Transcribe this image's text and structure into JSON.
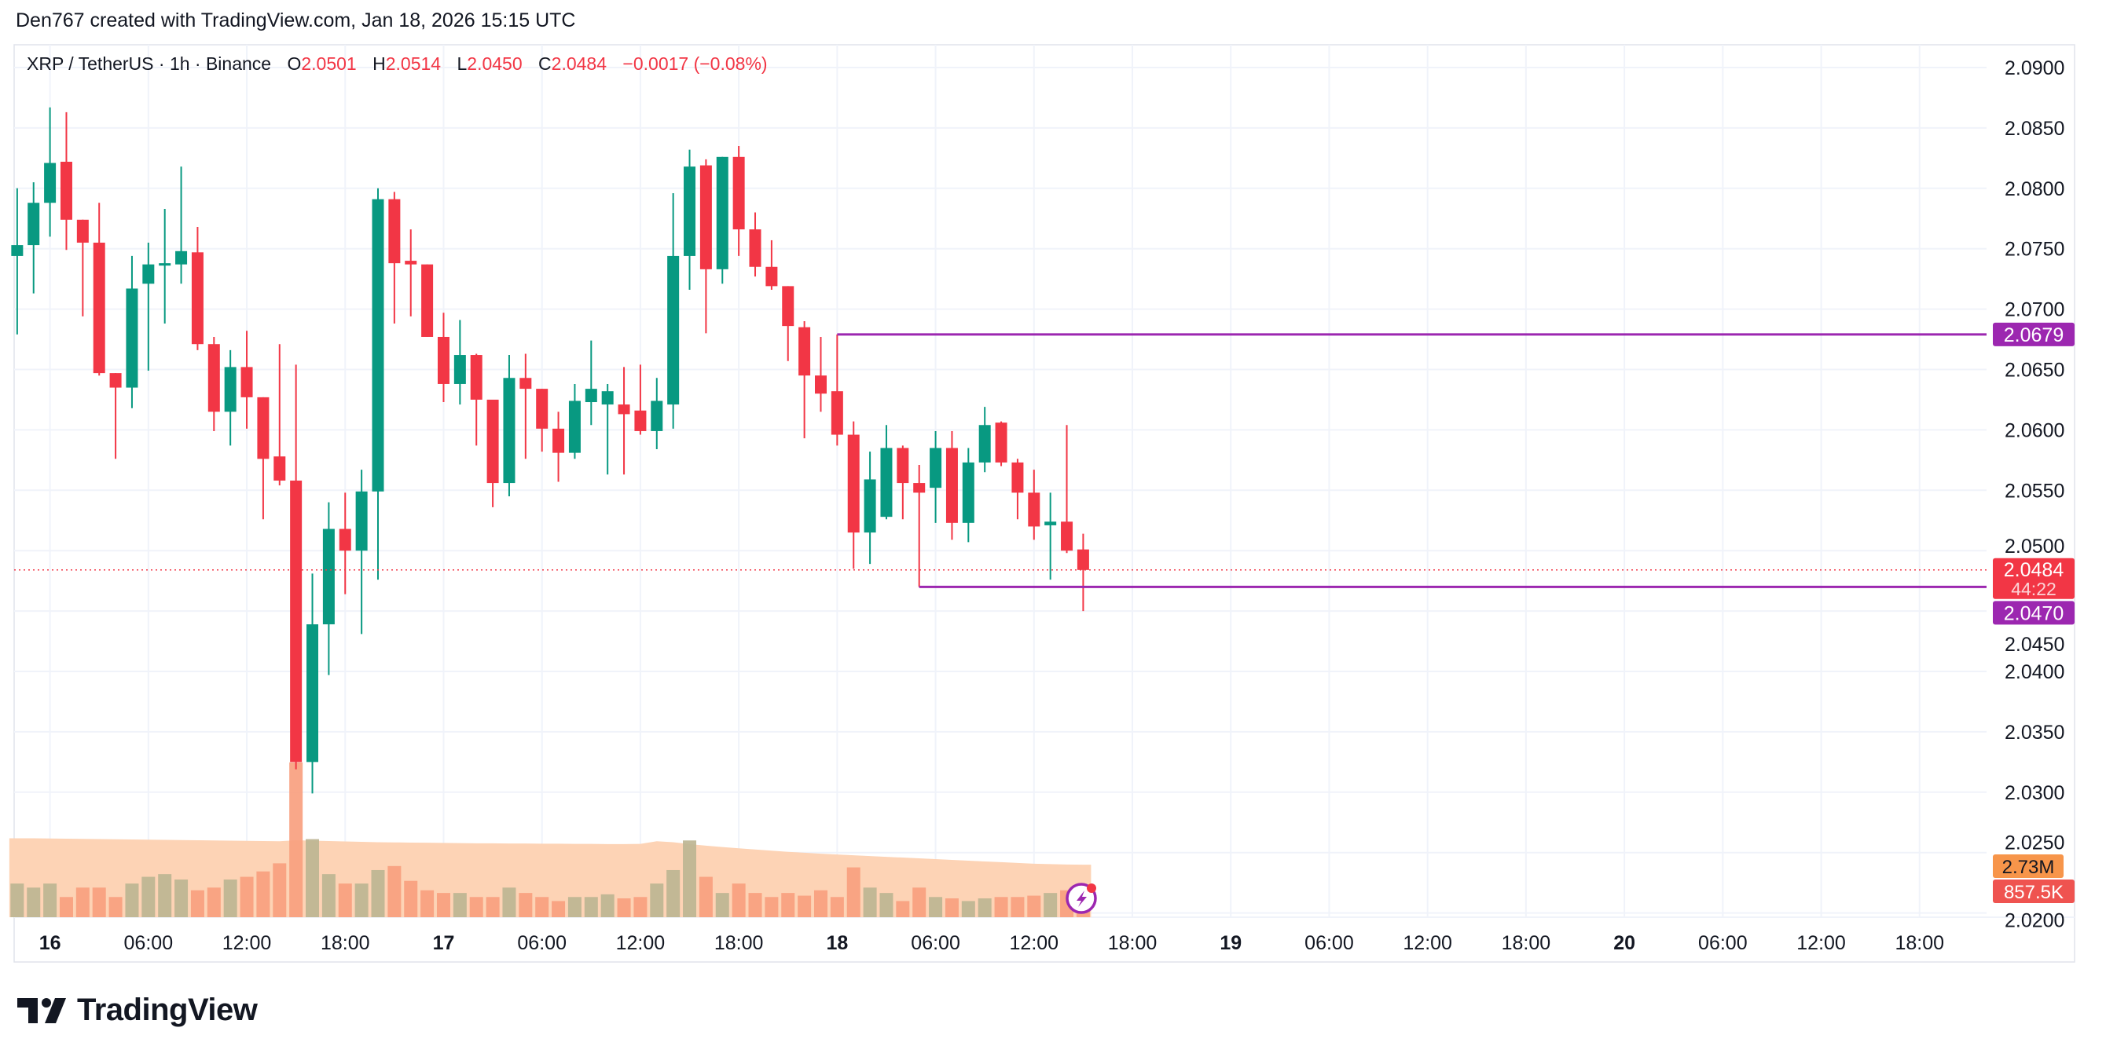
{
  "header": {
    "attribution": "Den767 created with TradingView.com, Jan 18, 2026 15:15 UTC"
  },
  "legend": {
    "symbol": "XRP / TetherUS · 1h · Binance",
    "o_label": "O",
    "o": "2.0501",
    "h_label": "H",
    "h": "2.0514",
    "l_label": "L",
    "l": "2.0450",
    "c_label": "C",
    "c": "2.0484",
    "change": "−0.0017 (−0.08%)"
  },
  "logo": {
    "text": "TradingView"
  },
  "colors": {
    "up": "#089981",
    "down": "#f23645",
    "level": "#9c27b0",
    "volume_ma": "#fdd3b5",
    "volume_up": "#bdb592",
    "volume_down": "#f8a07f",
    "ma_badge": "#f7954a",
    "volume_badge": "#ef5350"
  },
  "chart_data": {
    "type": "candlestick",
    "title": "",
    "ylim": [
      2.0175,
      2.0925
    ],
    "grid": true,
    "y_ticks": [
      "2.0900",
      "2.0850",
      "2.0800",
      "2.0750",
      "2.0700",
      "2.0650",
      "2.0600",
      "2.0550",
      "2.0500",
      "2.0450",
      "2.0400",
      "2.0350",
      "2.0300",
      "2.0250",
      "2.0200"
    ],
    "x_ticks": [
      {
        "label": "16",
        "t": "01-16 00:00",
        "bold": true
      },
      {
        "label": "06:00",
        "t": "01-16 06:00"
      },
      {
        "label": "12:00",
        "t": "01-16 12:00"
      },
      {
        "label": "18:00",
        "t": "01-16 18:00"
      },
      {
        "label": "17",
        "t": "01-17 00:00",
        "bold": true
      },
      {
        "label": "06:00",
        "t": "01-17 06:00"
      },
      {
        "label": "12:00",
        "t": "01-17 12:00"
      },
      {
        "label": "18:00",
        "t": "01-17 18:00"
      },
      {
        "label": "18",
        "t": "01-18 00:00",
        "bold": true
      },
      {
        "label": "06:00",
        "t": "01-18 06:00"
      },
      {
        "label": "12:00",
        "t": "01-18 12:00"
      },
      {
        "label": "18:00",
        "t": "01-18 18:00"
      },
      {
        "label": "19",
        "t": "01-19 00:00",
        "bold": true
      },
      {
        "label": "06:00",
        "t": "01-19 06:00"
      },
      {
        "label": "12:00",
        "t": "01-19 12:00"
      },
      {
        "label": "18:00",
        "t": "01-19 18:00"
      },
      {
        "label": "20",
        "t": "01-20 00:00",
        "bold": true
      },
      {
        "label": "06:00",
        "t": "01-20 06:00"
      },
      {
        "label": "12:00",
        "t": "01-20 12:00"
      },
      {
        "label": "18:00",
        "t": "01-20 18:00"
      }
    ],
    "candles_columns": [
      "time",
      "open",
      "high",
      "low",
      "close"
    ],
    "candles": [
      [
        "01-15 22:00",
        2.0744,
        2.08,
        2.0679,
        2.0753
      ],
      [
        "01-15 23:00",
        2.0753,
        2.0805,
        2.0713,
        2.0788
      ],
      [
        "01-16 00:00",
        2.0788,
        2.0867,
        2.076,
        2.0821
      ],
      [
        "01-16 01:00",
        2.0822,
        2.0863,
        2.0749,
        2.0774
      ],
      [
        "01-16 02:00",
        2.0774,
        2.0774,
        2.0694,
        2.0755
      ],
      [
        "01-16 03:00",
        2.0755,
        2.0788,
        2.0645,
        2.0647
      ],
      [
        "01-16 04:00",
        2.0647,
        2.0647,
        2.0576,
        2.0635
      ],
      [
        "01-16 05:00",
        2.0635,
        2.0744,
        2.0618,
        2.0717
      ],
      [
        "01-16 06:00",
        2.0721,
        2.0755,
        2.0649,
        2.0737
      ],
      [
        "01-16 07:00",
        2.0736,
        2.0783,
        2.0688,
        2.0738
      ],
      [
        "01-16 08:00",
        2.0737,
        2.0818,
        2.0721,
        2.0748
      ],
      [
        "01-16 09:00",
        2.0747,
        2.0768,
        2.0666,
        2.0671
      ],
      [
        "01-16 10:00",
        2.0671,
        2.0677,
        2.0599,
        2.0615
      ],
      [
        "01-16 11:00",
        2.0615,
        2.0666,
        2.0587,
        2.0652
      ],
      [
        "01-16 12:00",
        2.0652,
        2.0682,
        2.0601,
        2.0627
      ],
      [
        "01-16 13:00",
        2.0627,
        2.0627,
        2.0526,
        2.0576
      ],
      [
        "01-16 14:00",
        2.0578,
        2.0671,
        2.0554,
        2.0558
      ],
      [
        "01-16 15:00",
        2.0558,
        2.0654,
        2.0319,
        2.0325
      ],
      [
        "01-16 16:00",
        2.0325,
        2.0481,
        2.0299,
        2.0439
      ],
      [
        "01-16 17:00",
        2.0439,
        2.054,
        2.0397,
        2.0518
      ],
      [
        "01-16 18:00",
        2.0518,
        2.0548,
        2.0464,
        2.05
      ],
      [
        "01-16 19:00",
        2.05,
        2.0567,
        2.0431,
        2.0549
      ],
      [
        "01-16 20:00",
        2.0549,
        2.08,
        2.0476,
        2.0791
      ],
      [
        "01-16 21:00",
        2.0791,
        2.0797,
        2.0688,
        2.0738
      ],
      [
        "01-16 22:00",
        2.074,
        2.0766,
        2.0694,
        2.0737
      ],
      [
        "01-16 23:00",
        2.0737,
        2.0737,
        2.0677,
        2.0677
      ],
      [
        "01-17 00:00",
        2.0677,
        2.0697,
        2.0623,
        2.0638
      ],
      [
        "01-17 01:00",
        2.0638,
        2.0691,
        2.0621,
        2.0662
      ],
      [
        "01-17 02:00",
        2.0662,
        2.0663,
        2.0587,
        2.0625
      ],
      [
        "01-17 03:00",
        2.0625,
        2.0625,
        2.0536,
        2.0556
      ],
      [
        "01-17 04:00",
        2.0556,
        2.0662,
        2.0545,
        2.0643
      ],
      [
        "01-17 05:00",
        2.0643,
        2.0663,
        2.0576,
        2.0634
      ],
      [
        "01-17 06:00",
        2.0634,
        2.0634,
        2.0582,
        2.0601
      ],
      [
        "01-17 07:00",
        2.0601,
        2.0615,
        2.0557,
        2.0581
      ],
      [
        "01-17 08:00",
        2.0581,
        2.0638,
        2.0576,
        2.0624
      ],
      [
        "01-17 09:00",
        2.0623,
        2.0674,
        2.0604,
        2.0634
      ],
      [
        "01-17 10:00",
        2.0621,
        2.0638,
        2.0563,
        2.0632
      ],
      [
        "01-17 11:00",
        2.0621,
        2.0652,
        2.0563,
        2.0613
      ],
      [
        "01-17 12:00",
        2.0616,
        2.0654,
        2.0596,
        2.0599
      ],
      [
        "01-17 13:00",
        2.0599,
        2.0643,
        2.0584,
        2.0624
      ],
      [
        "01-17 14:00",
        2.0621,
        2.0796,
        2.0601,
        2.0744
      ],
      [
        "01-17 15:00",
        2.0744,
        2.0832,
        2.0716,
        2.0818
      ],
      [
        "01-17 16:00",
        2.0819,
        2.0824,
        2.068,
        2.0733
      ],
      [
        "01-17 17:00",
        2.0733,
        2.0826,
        2.0721,
        2.0826
      ],
      [
        "01-17 18:00",
        2.0826,
        2.0835,
        2.0744,
        2.0766
      ],
      [
        "01-17 19:00",
        2.0766,
        2.078,
        2.0727,
        2.0735
      ],
      [
        "01-17 20:00",
        2.0735,
        2.0757,
        2.0716,
        2.0719
      ],
      [
        "01-17 21:00",
        2.0719,
        2.0719,
        2.0657,
        2.0686
      ],
      [
        "01-17 22:00",
        2.0685,
        2.069,
        2.0593,
        2.0645
      ],
      [
        "01-17 23:00",
        2.0645,
        2.0677,
        2.0615,
        2.063
      ],
      [
        "01-18 00:00",
        2.0632,
        2.0679,
        2.0587,
        2.0596
      ],
      [
        "01-18 01:00",
        2.0596,
        2.0607,
        2.0485,
        2.0515
      ],
      [
        "01-18 02:00",
        2.0515,
        2.0582,
        2.0489,
        2.0559
      ],
      [
        "01-18 03:00",
        2.0528,
        2.0604,
        2.0526,
        2.0585
      ],
      [
        "01-18 04:00",
        2.0585,
        2.0587,
        2.0526,
        2.0556
      ],
      [
        "01-18 05:00",
        2.0556,
        2.0571,
        2.047,
        2.0548
      ],
      [
        "01-18 06:00",
        2.0552,
        2.0599,
        2.0523,
        2.0585
      ],
      [
        "01-18 07:00",
        2.0585,
        2.0599,
        2.0509,
        2.0523
      ],
      [
        "01-18 08:00",
        2.0523,
        2.0585,
        2.0507,
        2.0573
      ],
      [
        "01-18 09:00",
        2.0573,
        2.0619,
        2.0565,
        2.0604
      ],
      [
        "01-18 10:00",
        2.0606,
        2.0607,
        2.057,
        2.0573
      ],
      [
        "01-18 11:00",
        2.0573,
        2.0576,
        2.0526,
        2.0548
      ],
      [
        "01-18 12:00",
        2.0548,
        2.0567,
        2.0509,
        2.052
      ],
      [
        "01-18 13:00",
        2.0521,
        2.0548,
        2.0476,
        2.0524
      ],
      [
        "01-18 14:00",
        2.0524,
        2.0604,
        2.0498,
        2.05
      ],
      [
        "01-18 15:00",
        2.0501,
        2.0514,
        2.045,
        2.0484
      ]
    ],
    "volume_k": [
      1750,
      1540,
      1750,
      1050,
      1540,
      1540,
      1050,
      1750,
      2100,
      2240,
      1960,
      1400,
      1540,
      1960,
      2100,
      2380,
      2800,
      8050,
      4060,
      2240,
      1750,
      1750,
      2450,
      2660,
      1890,
      1400,
      1260,
      1260,
      1050,
      1050,
      1540,
      1260,
      1050,
      840,
      1050,
      1050,
      1190,
      980,
      1050,
      1750,
      2450,
      3990,
      2100,
      1260,
      1750,
      1260,
      1050,
      1260,
      1120,
      1400,
      1050,
      2590,
      1540,
      1260,
      840,
      1540,
      1050,
      980,
      840,
      980,
      1050,
      1050,
      1120,
      1260,
      1400,
      857.5
    ],
    "volume_ma_m": [
      4.1,
      4.1,
      4.09,
      4.08,
      4.07,
      4.06,
      4.05,
      4.04,
      4.03,
      4.02,
      4.01,
      4.0,
      3.99,
      3.98,
      3.97,
      3.96,
      3.95,
      4.0,
      3.98,
      3.96,
      3.94,
      3.92,
      3.9,
      3.89,
      3.88,
      3.87,
      3.86,
      3.85,
      3.84,
      3.84,
      3.83,
      3.83,
      3.82,
      3.82,
      3.81,
      3.81,
      3.8,
      3.8,
      3.81,
      3.95,
      3.9,
      3.8,
      3.72,
      3.65,
      3.58,
      3.52,
      3.46,
      3.4,
      3.35,
      3.3,
      3.26,
      3.22,
      3.18,
      3.14,
      3.1,
      3.06,
      3.02,
      2.98,
      2.94,
      2.9,
      2.86,
      2.82,
      2.78,
      2.76,
      2.74,
      2.73
    ],
    "levels": [
      {
        "price": 2.0679,
        "label": "2.0679",
        "from": "01-18 00:00"
      },
      {
        "price": 2.047,
        "label": "2.0470",
        "from": "01-18 05:00"
      }
    ],
    "last_price": {
      "price": 2.0484,
      "label": "2.0484",
      "countdown": "44:22"
    },
    "volume_ma_label": "2.73M",
    "volume_label": "857.5K"
  }
}
